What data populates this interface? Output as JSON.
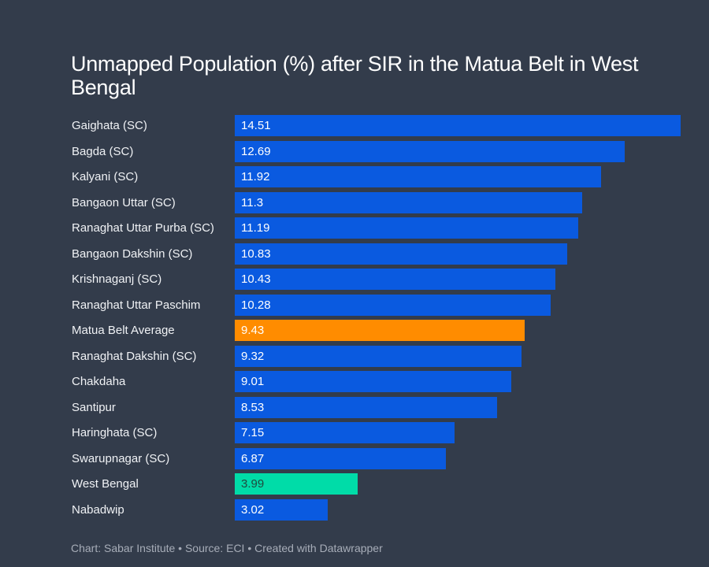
{
  "chart_data": {
    "type": "bar",
    "orientation": "horizontal",
    "title": "Unmapped Population (%) after SIR in the Matua Belt in West Bengal",
    "xlabel": "",
    "ylabel": "",
    "xlim": [
      0,
      14.51
    ],
    "grid": false,
    "legend": "none",
    "categories": [
      "Gaighata (SC)",
      "Bagda (SC)",
      "Kalyani (SC)",
      "Bangaon Uttar (SC)",
      "Ranaghat Uttar Purba (SC)",
      "Bangaon Dakshin (SC)",
      "Krishnaganj (SC)",
      "Ranaghat Uttar Paschim",
      "Matua Belt Average",
      "Ranaghat Dakshin (SC)",
      "Chakdaha",
      "Santipur",
      "Haringhata (SC)",
      "Swarupnagar (SC)",
      "West Bengal",
      "Nabadwip"
    ],
    "values": [
      14.51,
      12.69,
      11.92,
      11.3,
      11.19,
      10.83,
      10.43,
      10.28,
      9.43,
      9.32,
      9.01,
      8.53,
      7.15,
      6.87,
      3.99,
      3.02
    ],
    "value_labels": [
      "14.51",
      "12.69",
      "11.92",
      "11.3",
      "11.19",
      "10.83",
      "10.43",
      "10.28",
      "9.43",
      "9.32",
      "9.01",
      "8.53",
      "7.15",
      "6.87",
      "3.99",
      "3.02"
    ],
    "bar_colors": [
      "#0a5ae0",
      "#0a5ae0",
      "#0a5ae0",
      "#0a5ae0",
      "#0a5ae0",
      "#0a5ae0",
      "#0a5ae0",
      "#0a5ae0",
      "#ff8c00",
      "#0a5ae0",
      "#0a5ae0",
      "#0a5ae0",
      "#0a5ae0",
      "#0a5ae0",
      "#00dca8",
      "#0a5ae0"
    ],
    "label_colors": [
      "#ffffff",
      "#ffffff",
      "#ffffff",
      "#ffffff",
      "#ffffff",
      "#ffffff",
      "#ffffff",
      "#ffffff",
      "#ffffff",
      "#ffffff",
      "#ffffff",
      "#ffffff",
      "#ffffff",
      "#ffffff",
      "#1f4a3e",
      "#ffffff"
    ]
  },
  "footer": "Chart: Sabar Institute • Source: ECI • Created with Datawrapper"
}
